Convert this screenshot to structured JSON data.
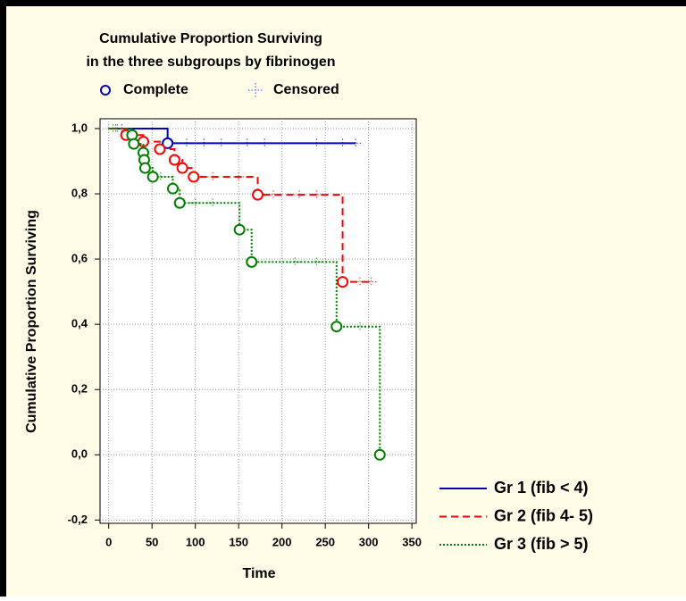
{
  "chart_data": {
    "type": "survival",
    "title_lines": [
      "Cumulative Proportion Surviving",
      "in the three subgroups by fibrinogen"
    ],
    "marker_legend": {
      "complete": "Complete",
      "censored": "Censored"
    },
    "xlabel": "Time",
    "ylabel": "Cumulative Proportion Surviving",
    "xlim": [
      -10,
      355
    ],
    "ylim": [
      -0.21,
      1.03
    ],
    "xticks": [
      0,
      50,
      100,
      150,
      200,
      250,
      300,
      350
    ],
    "yticks": [
      {
        "value": -0.2,
        "label": "-0,2"
      },
      {
        "value": 0,
        "label": "0,0"
      },
      {
        "value": 0.2,
        "label": "0,2"
      },
      {
        "value": 0.4,
        "label": "0,4"
      },
      {
        "value": 0.6,
        "label": "0,6"
      },
      {
        "value": 0.8,
        "label": "0,8"
      },
      {
        "value": 1,
        "label": "1,0"
      }
    ],
    "grid": true,
    "series": [
      {
        "name": "Gr 1  (fib < 4)",
        "color": "#0000c0",
        "linestyle": "solid",
        "x": [
          68
        ],
        "values": [
          0.955
        ],
        "censored": {
          "x": [
            8,
            15,
            90,
            110,
            130,
            160,
            180,
            240,
            270,
            285
          ],
          "values": [
            1,
            1,
            0.955,
            0.955,
            0.955,
            0.955,
            0.955,
            0.955,
            0.955,
            0.955
          ]
        }
      },
      {
        "name": "Gr  2 (fib 4- 5)",
        "color": "#ff0000",
        "linestyle": "dashed",
        "x": [
          20,
          40,
          59,
          76,
          85,
          98,
          172,
          270
        ],
        "values": [
          0.98,
          0.96,
          0.937,
          0.904,
          0.879,
          0.852,
          0.797,
          0.53
        ],
        "censored": {
          "x": [
            10,
            120,
            150,
            190,
            220,
            240,
            290,
            303
          ],
          "values": [
            1,
            0.852,
            0.852,
            0.797,
            0.797,
            0.797,
            0.53,
            0.53
          ]
        }
      },
      {
        "name": "Gr  3 (fib > 5)",
        "color": "#008000",
        "linestyle": "dotted",
        "x": [
          27,
          29,
          40,
          41,
          42,
          51,
          74,
          82,
          151,
          165,
          263,
          313
        ],
        "values": [
          0.98,
          0.953,
          0.926,
          0.904,
          0.879,
          0.852,
          0.816,
          0.772,
          0.69,
          0.591,
          0.393,
          0
        ],
        "censored": {
          "x": [
            5,
            60,
            100,
            120,
            215,
            240,
            290
          ],
          "values": [
            1,
            0.852,
            0.772,
            0.772,
            0.591,
            0.591,
            0.393
          ]
        }
      }
    ]
  }
}
